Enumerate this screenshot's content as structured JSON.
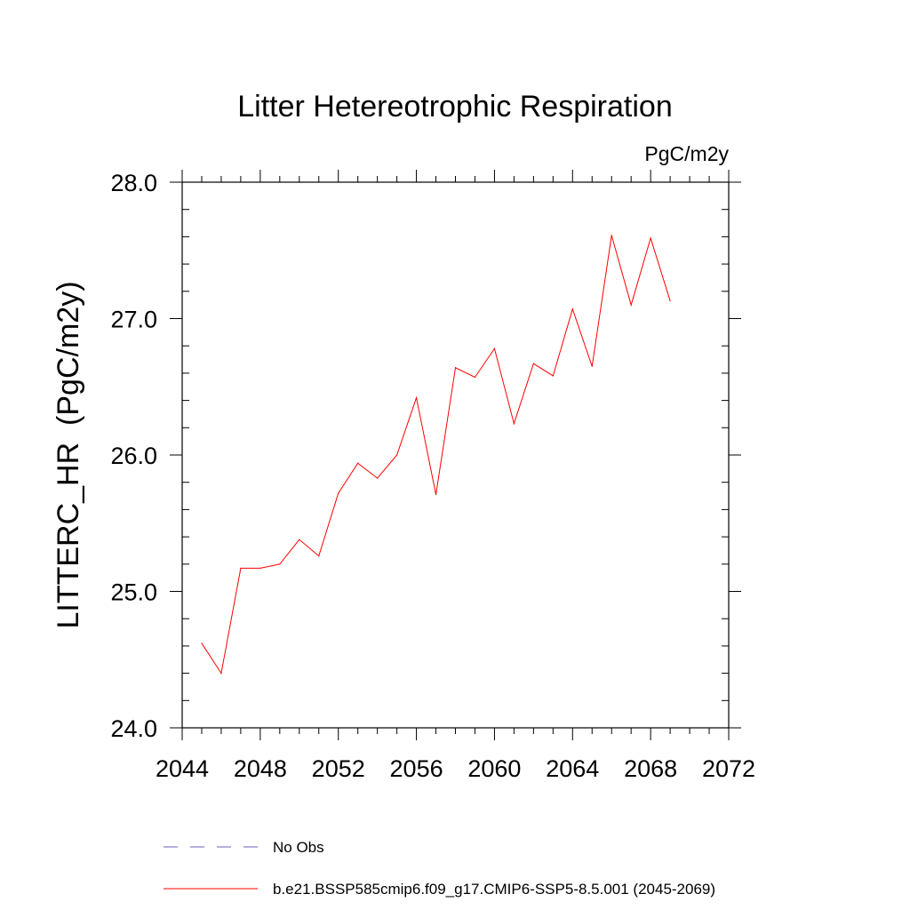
{
  "chart_data": {
    "type": "line",
    "title": "Litter Hetereotrophic Respiration",
    "units_label": "PgC/m2y",
    "ylabel": "LITTERC_HR  (PgC/m2y)",
    "xlabel": "",
    "xlim": [
      2044,
      2072
    ],
    "ylim": [
      24.0,
      28.0
    ],
    "xticks": [
      2044,
      2048,
      2052,
      2056,
      2060,
      2064,
      2068,
      2072
    ],
    "xtick_labels": [
      "2044",
      "2048",
      "2052",
      "2056",
      "2060",
      "2064",
      "2068",
      "2072"
    ],
    "yticks": [
      24.0,
      25.0,
      26.0,
      27.0,
      28.0
    ],
    "ytick_labels": [
      "24.0",
      "25.0",
      "26.0",
      "27.0",
      "28.0"
    ],
    "x_minor_step": 1,
    "y_minor_step": 0.2,
    "grid": false,
    "series": [
      {
        "name": "b.e21.BSSP585cmip6.f09_g17.CMIP6-SSP5-8.5.001 (2045-2069)",
        "color": "#ff0000",
        "style": "solid",
        "x": [
          2045,
          2046,
          2047,
          2048,
          2049,
          2050,
          2051,
          2052,
          2053,
          2054,
          2055,
          2056,
          2057,
          2058,
          2059,
          2060,
          2061,
          2062,
          2063,
          2064,
          2065,
          2066,
          2067,
          2068,
          2069
        ],
        "values": [
          24.62,
          24.4,
          25.17,
          25.17,
          25.2,
          25.38,
          25.26,
          25.72,
          25.94,
          25.83,
          26.0,
          26.42,
          25.71,
          26.64,
          26.57,
          26.78,
          26.23,
          26.67,
          26.58,
          27.07,
          26.65,
          27.61,
          27.1,
          27.59,
          27.13
        ]
      }
    ],
    "legend": [
      {
        "label": "No Obs",
        "color": "#6b5fb5",
        "style": "dashed"
      },
      {
        "label": "b.e21.BSSP585cmip6.f09_g17.CMIP6-SSP5-8.5.001 (2045-2069)",
        "color": "#ff0000",
        "style": "solid"
      }
    ],
    "legend_position": "bottom"
  }
}
